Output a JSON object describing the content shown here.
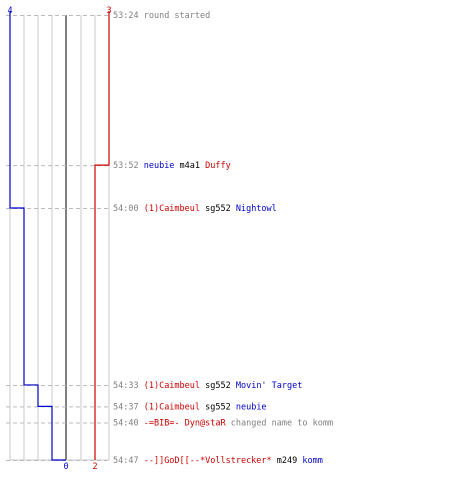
{
  "chart_data": {
    "type": "line",
    "axis_x_labels": {
      "top_left": "4",
      "top_right": "3",
      "bottom_center": "0",
      "bottom_right": "2"
    },
    "colors": {
      "blue_team": "#0000cc",
      "red_team": "#cc0000",
      "time": "#808080",
      "neutral_text": "#000000",
      "event_text_gray": "#808080",
      "grid": "#c8c8c8",
      "center_line": "#808080",
      "dash": "#bbbbbb"
    },
    "time_domain": [
      "53:24",
      "54:47"
    ],
    "events": [
      {
        "time": "53:24",
        "parts": [
          {
            "text": "round started",
            "color": "gray"
          }
        ]
      },
      {
        "time": "53:52",
        "parts": [
          {
            "text": "neubie",
            "color": "blue"
          },
          {
            "text": " m4a1 ",
            "color": "black"
          },
          {
            "text": "Duffy",
            "color": "red"
          }
        ]
      },
      {
        "time": "54:00",
        "parts": [
          {
            "text": "(1)Caimbeul",
            "color": "red"
          },
          {
            "text": " sg552 ",
            "color": "black"
          },
          {
            "text": "Nightowl",
            "color": "blue"
          }
        ]
      },
      {
        "time": "54:33",
        "parts": [
          {
            "text": "(1)Caimbeul",
            "color": "red"
          },
          {
            "text": " sg552 ",
            "color": "black"
          },
          {
            "text": "Movin' Target",
            "color": "blue"
          }
        ]
      },
      {
        "time": "54:37",
        "parts": [
          {
            "text": "(1)Caimbeul",
            "color": "red"
          },
          {
            "text": " sg552 ",
            "color": "black"
          },
          {
            "text": "neubie",
            "color": "blue"
          }
        ]
      },
      {
        "time": "54:40",
        "parts": [
          {
            "text": "-=BIB=- Dyn@staR",
            "color": "red"
          },
          {
            "text": " changed name to komm",
            "color": "gray"
          }
        ]
      },
      {
        "time": "54:47",
        "parts": [
          {
            "text": "--]]GoD[[--*Vollstrecker*",
            "color": "red"
          },
          {
            "text": " m249 ",
            "color": "black"
          },
          {
            "text": "komm",
            "color": "blue"
          }
        ]
      }
    ],
    "series": [
      {
        "team": "blue",
        "values": [
          4,
          4,
          3,
          2,
          1,
          1,
          0
        ]
      },
      {
        "team": "red",
        "values": [
          3,
          2,
          2,
          2,
          2,
          2,
          2
        ]
      }
    ]
  }
}
